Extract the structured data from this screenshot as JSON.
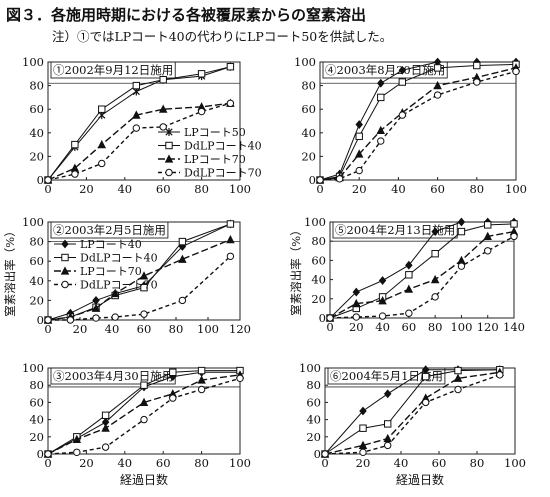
{
  "figure": {
    "title": "図３．各施用時期における各被覆尿素からの窒素溶出",
    "note": "注）①ではLPコート40の代わりにLPコート50を供試した。"
  },
  "chart_data": [
    {
      "type": "line",
      "title": "①2002年9月12日施用",
      "xlabel": "",
      "ylabel": "",
      "xlim": [
        0,
        100
      ],
      "ylim": [
        0,
        100
      ],
      "xticks": [
        0,
        20,
        40,
        60,
        80,
        100
      ],
      "yticks": [
        0,
        20,
        40,
        60,
        80,
        100
      ],
      "reference_y": 82,
      "legend": "bottom-right",
      "series": [
        {
          "name": "LPコート50",
          "marker": "star",
          "dash": "solid",
          "x": [
            0,
            14,
            28,
            46,
            60,
            80,
            95
          ],
          "y": [
            0,
            28,
            55,
            75,
            85,
            88,
            96
          ]
        },
        {
          "name": "DdLPコート40",
          "marker": "square",
          "dash": "solid",
          "x": [
            0,
            14,
            28,
            46,
            60,
            80,
            95
          ],
          "y": [
            0,
            30,
            60,
            80,
            85,
            90,
            96
          ]
        },
        {
          "name": "LPコート70",
          "marker": "triangle",
          "dash": "dashed",
          "x": [
            0,
            14,
            28,
            46,
            60,
            80,
            95
          ],
          "y": [
            0,
            10,
            30,
            55,
            60,
            62,
            65
          ]
        },
        {
          "name": "DdLPコート70",
          "marker": "circle",
          "dash": "dashed",
          "x": [
            0,
            14,
            28,
            46,
            60,
            80,
            95
          ],
          "y": [
            0,
            5,
            14,
            44,
            45,
            58,
            65
          ]
        }
      ]
    },
    {
      "type": "line",
      "title": "④2003年8月20日施用",
      "xlabel": "",
      "ylabel": "",
      "xlim": [
        0,
        100
      ],
      "ylim": [
        0,
        100
      ],
      "xticks": [
        0,
        20,
        40,
        60,
        80,
        100
      ],
      "yticks": [
        0,
        20,
        40,
        60,
        80,
        100
      ],
      "reference_y": 82,
      "series": [
        {
          "name": "LPコート40",
          "marker": "diamond",
          "dash": "solid",
          "x": [
            0,
            10,
            20,
            31,
            42,
            60,
            80,
            100
          ],
          "y": [
            0,
            5,
            47,
            82,
            93,
            100,
            100,
            100
          ]
        },
        {
          "name": "DdLPコート40",
          "marker": "square",
          "dash": "solid",
          "x": [
            0,
            10,
            20,
            31,
            42,
            60,
            80,
            100
          ],
          "y": [
            0,
            3,
            37,
            70,
            83,
            95,
            97,
            98
          ]
        },
        {
          "name": "LPコート70",
          "marker": "triangle",
          "dash": "dashed",
          "x": [
            0,
            10,
            20,
            31,
            42,
            60,
            80,
            100
          ],
          "y": [
            0,
            2,
            22,
            42,
            57,
            80,
            87,
            95
          ]
        },
        {
          "name": "DdLPコート70",
          "marker": "circle",
          "dash": "dashed",
          "x": [
            0,
            10,
            20,
            31,
            42,
            60,
            80,
            100
          ],
          "y": [
            0,
            1,
            8,
            33,
            55,
            72,
            83,
            92
          ]
        }
      ]
    },
    {
      "type": "line",
      "title": "②2003年2月5日施用",
      "xlabel": "",
      "ylabel": "窒素溶出率（%）",
      "xlim": [
        0,
        120
      ],
      "ylim": [
        0,
        100
      ],
      "xticks": [
        0,
        20,
        40,
        60,
        80,
        100,
        120
      ],
      "yticks": [
        0,
        20,
        40,
        60,
        80,
        100
      ],
      "reference_y": 80,
      "legend": "top-left",
      "series": [
        {
          "name": "LPコート40",
          "marker": "diamond",
          "dash": "solid",
          "x": [
            0,
            14,
            30,
            42,
            60,
            84,
            114
          ],
          "y": [
            0,
            7,
            20,
            27,
            35,
            75,
            98
          ]
        },
        {
          "name": "DdLPコート40",
          "marker": "square",
          "dash": "solid",
          "x": [
            0,
            14,
            30,
            42,
            60,
            84,
            114
          ],
          "y": [
            0,
            3,
            13,
            25,
            33,
            80,
            98
          ]
        },
        {
          "name": "LPコート70",
          "marker": "triangle",
          "dash": "dashed",
          "x": [
            0,
            14,
            30,
            42,
            60,
            84,
            114
          ],
          "y": [
            0,
            3,
            12,
            27,
            45,
            62,
            82
          ]
        },
        {
          "name": "DdLPコート70",
          "marker": "circle",
          "dash": "dashed",
          "x": [
            0,
            14,
            30,
            42,
            60,
            84,
            114
          ],
          "y": [
            0,
            0,
            2,
            3,
            6,
            20,
            65
          ]
        }
      ]
    },
    {
      "type": "line",
      "title": "⑤2004年2月13日施用",
      "xlabel": "",
      "ylabel": "窒素溶出率（%）",
      "xlim": [
        0,
        140
      ],
      "ylim": [
        0,
        100
      ],
      "xticks": [
        0,
        20,
        40,
        60,
        80,
        100,
        120,
        140
      ],
      "yticks": [
        0,
        20,
        40,
        60,
        80,
        100
      ],
      "reference_y": 80,
      "series": [
        {
          "name": "LPコート40",
          "marker": "diamond",
          "dash": "solid",
          "x": [
            0,
            20,
            40,
            60,
            80,
            100,
            120,
            140
          ],
          "y": [
            0,
            27,
            39,
            55,
            90,
            100,
            100,
            100
          ]
        },
        {
          "name": "DdLPコート40",
          "marker": "square",
          "dash": "solid",
          "x": [
            0,
            20,
            40,
            60,
            80,
            100,
            120,
            140
          ],
          "y": [
            0,
            10,
            22,
            45,
            67,
            90,
            97,
            98
          ]
        },
        {
          "name": "LPコート70",
          "marker": "triangle",
          "dash": "dashed",
          "x": [
            0,
            20,
            40,
            60,
            80,
            100,
            120,
            140
          ],
          "y": [
            0,
            15,
            18,
            30,
            40,
            60,
            85,
            90
          ]
        },
        {
          "name": "DdLPコート70",
          "marker": "circle",
          "dash": "dashed",
          "x": [
            0,
            20,
            40,
            60,
            80,
            100,
            120,
            140
          ],
          "y": [
            0,
            1,
            2,
            5,
            22,
            54,
            70,
            85
          ]
        }
      ]
    },
    {
      "type": "line",
      "title": "③2003年4月30日施用",
      "xlabel": "経過日数",
      "ylabel": "",
      "xlim": [
        0,
        100
      ],
      "ylim": [
        0,
        100
      ],
      "xticks": [
        0,
        20,
        40,
        60,
        80,
        100
      ],
      "yticks": [
        0,
        20,
        40,
        60,
        80,
        100
      ],
      "reference_y": 78,
      "series": [
        {
          "name": "LPコート40",
          "marker": "diamond",
          "dash": "solid",
          "x": [
            0,
            15,
            30,
            50,
            65,
            80,
            100
          ],
          "y": [
            0,
            18,
            37,
            78,
            90,
            95,
            95
          ]
        },
        {
          "name": "DdLPコート40",
          "marker": "square",
          "dash": "solid",
          "x": [
            0,
            15,
            30,
            50,
            65,
            80,
            100
          ],
          "y": [
            0,
            20,
            45,
            80,
            95,
            97,
            97
          ]
        },
        {
          "name": "LPコート70",
          "marker": "triangle",
          "dash": "dashed",
          "x": [
            0,
            15,
            30,
            50,
            65,
            80,
            100
          ],
          "y": [
            0,
            17,
            30,
            60,
            70,
            86,
            92
          ]
        },
        {
          "name": "DdLPコート70",
          "marker": "circle",
          "dash": "dashed",
          "x": [
            0,
            15,
            30,
            50,
            65,
            80,
            100
          ],
          "y": [
            0,
            2,
            8,
            40,
            65,
            75,
            88
          ]
        }
      ]
    },
    {
      "type": "line",
      "title": "⑥2004年5月1日施用",
      "xlabel": "経過日数",
      "ylabel": "",
      "xlim": [
        0,
        100
      ],
      "ylim": [
        0,
        100
      ],
      "xticks": [
        0,
        20,
        40,
        60,
        80,
        100
      ],
      "yticks": [
        0,
        20,
        40,
        60,
        80,
        100
      ],
      "reference_y": 78,
      "series": [
        {
          "name": "LPコート40",
          "marker": "diamond",
          "dash": "solid",
          "x": [
            0,
            20,
            33,
            53,
            70,
            92
          ],
          "y": [
            0,
            50,
            70,
            98,
            98,
            98
          ]
        },
        {
          "name": "DdLPコート40",
          "marker": "square",
          "dash": "solid",
          "x": [
            0,
            20,
            33,
            53,
            70,
            92
          ],
          "y": [
            0,
            30,
            35,
            90,
            97,
            98
          ]
        },
        {
          "name": "LPコート70",
          "marker": "triangle",
          "dash": "dashed",
          "x": [
            0,
            20,
            33,
            53,
            70,
            92
          ],
          "y": [
            0,
            10,
            18,
            65,
            88,
            95
          ]
        },
        {
          "name": "DdLPコート70",
          "marker": "circle",
          "dash": "dashed",
          "x": [
            0,
            20,
            33,
            53,
            70,
            92
          ],
          "y": [
            0,
            2,
            10,
            60,
            75,
            92
          ]
        }
      ]
    }
  ]
}
